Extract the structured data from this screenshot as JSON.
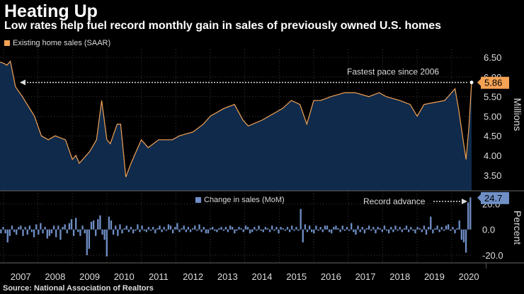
{
  "header": {
    "title": "Heating Up",
    "subtitle": "Low rates help fuel record monthly gain in sales of previously owned U.S. homes"
  },
  "source": "Source: National Association of Realtors",
  "colors": {
    "line": "#f4a254",
    "area": "#0f2a4a",
    "bar": "#6f8fc6",
    "badge1": "#f4a254",
    "badge2": "#6f8fc6"
  },
  "chart_data": [
    {
      "type": "area",
      "name": "top",
      "legend": "Existing home sales (SAAR)",
      "ylabel": "Millions",
      "ylim": [
        3.1,
        6.7
      ],
      "yticks": [
        "3.50",
        "4.00",
        "4.50",
        "5.00",
        "5.50",
        "6.00",
        "6.50"
      ],
      "years": [
        "2007",
        "2008",
        "2009",
        "2010",
        "2011",
        "2012",
        "2013",
        "2014",
        "2015",
        "2016",
        "2017",
        "2018",
        "2019",
        "2020"
      ],
      "xstart": 2006.9,
      "xend": 2020.58,
      "anchors": [
        [
          2006.9,
          6.38
        ],
        [
          2007.0,
          6.35
        ],
        [
          2007.1,
          6.3
        ],
        [
          2007.2,
          6.4
        ],
        [
          2007.35,
          5.75
        ],
        [
          2007.55,
          5.5
        ],
        [
          2007.9,
          5.0
        ],
        [
          2008.1,
          4.5
        ],
        [
          2008.3,
          4.4
        ],
        [
          2008.5,
          4.5
        ],
        [
          2008.8,
          4.4
        ],
        [
          2009.0,
          3.9
        ],
        [
          2009.1,
          4.0
        ],
        [
          2009.2,
          3.8
        ],
        [
          2009.5,
          4.1
        ],
        [
          2009.7,
          4.4
        ],
        [
          2009.85,
          5.4
        ],
        [
          2010.0,
          4.4
        ],
        [
          2010.1,
          4.3
        ],
        [
          2010.3,
          4.8
        ],
        [
          2010.4,
          4.8
        ],
        [
          2010.55,
          3.45
        ],
        [
          2010.7,
          3.8
        ],
        [
          2010.9,
          4.2
        ],
        [
          2011.0,
          4.4
        ],
        [
          2011.2,
          4.2
        ],
        [
          2011.5,
          4.4
        ],
        [
          2011.9,
          4.4
        ],
        [
          2012.1,
          4.5
        ],
        [
          2012.5,
          4.6
        ],
        [
          2012.8,
          4.8
        ],
        [
          2013.0,
          5.0
        ],
        [
          2013.4,
          5.2
        ],
        [
          2013.7,
          5.3
        ],
        [
          2013.95,
          4.9
        ],
        [
          2014.1,
          4.75
        ],
        [
          2014.5,
          4.9
        ],
        [
          2014.9,
          5.1
        ],
        [
          2015.1,
          5.2
        ],
        [
          2015.35,
          5.4
        ],
        [
          2015.6,
          5.3
        ],
        [
          2015.8,
          4.8
        ],
        [
          2016.0,
          5.4
        ],
        [
          2016.2,
          5.4
        ],
        [
          2016.5,
          5.5
        ],
        [
          2016.9,
          5.6
        ],
        [
          2017.2,
          5.6
        ],
        [
          2017.6,
          5.5
        ],
        [
          2017.9,
          5.6
        ],
        [
          2018.1,
          5.5
        ],
        [
          2018.5,
          5.4
        ],
        [
          2018.8,
          5.3
        ],
        [
          2019.0,
          5.0
        ],
        [
          2019.2,
          5.3
        ],
        [
          2019.5,
          5.35
        ],
        [
          2019.8,
          5.4
        ],
        [
          2019.95,
          5.55
        ],
        [
          2020.1,
          5.7
        ],
        [
          2020.2,
          5.2
        ],
        [
          2020.35,
          4.3
        ],
        [
          2020.42,
          3.9
        ],
        [
          2020.5,
          4.7
        ],
        [
          2020.58,
          5.86
        ]
      ],
      "annotation": "Fastest pace since 2006",
      "last_value": "5.86"
    },
    {
      "type": "bar",
      "name": "bottom",
      "legend": "Change in sales (MoM)",
      "ylabel": "Percent",
      "ylim": [
        -26,
        29
      ],
      "yticks": [
        "-20.0",
        "0.0",
        "20.0"
      ],
      "xstart": 2006.9,
      "xend": 2020.58,
      "values": [
        -3,
        2,
        -3,
        -10,
        -5,
        3,
        -2,
        -4,
        2,
        3,
        -5,
        2,
        -4,
        3,
        -2,
        -6,
        4,
        -4,
        5,
        -3,
        2,
        -7,
        -5,
        -3,
        3,
        -6,
        3,
        -8,
        2,
        4,
        -3,
        5,
        8,
        -5,
        9,
        -2,
        -5,
        3,
        -3,
        -20,
        -15,
        6,
        7,
        -5,
        8,
        11,
        -4,
        -8,
        -21,
        10,
        7,
        -4,
        3,
        -5,
        4,
        -3,
        1,
        3,
        -2,
        2,
        -3,
        -1,
        4,
        -2,
        3,
        -1,
        -2,
        2,
        -1,
        2,
        -3,
        1,
        3,
        -2,
        2,
        -1,
        4,
        3,
        -3,
        2,
        5,
        -2,
        1,
        3,
        -2,
        2,
        -2,
        1,
        3,
        -1,
        4,
        -2,
        2,
        -3,
        -3,
        1,
        2,
        -1,
        -2,
        1,
        2,
        -1,
        2,
        -2,
        3,
        2,
        -3,
        -1,
        2,
        1,
        -2,
        3,
        2,
        -3,
        -2,
        2,
        -1,
        3,
        -1,
        -2,
        2,
        1,
        -2,
        3,
        -1,
        2,
        -3,
        2,
        1,
        -1,
        2,
        -2,
        3,
        -1,
        2,
        -1,
        16,
        -10,
        4,
        -2,
        3,
        -2,
        -3,
        3,
        -1,
        2,
        -2,
        3,
        3,
        -2,
        -3,
        2,
        3,
        1,
        -2,
        3,
        -1,
        2,
        -1,
        5,
        -2,
        -4,
        3,
        -2,
        2,
        -3,
        1,
        3,
        -1,
        2,
        -3,
        2,
        1,
        -2,
        3,
        -1,
        -3,
        2,
        -2,
        3,
        -1,
        2,
        -2,
        1,
        3,
        -2,
        2,
        -1,
        -3,
        2,
        1,
        -2,
        3,
        -4,
        2,
        10,
        -3,
        1,
        3,
        -2,
        2,
        -1,
        3,
        4,
        -1,
        2,
        -3,
        1,
        7,
        -8,
        -10,
        -18,
        21,
        25
      ],
      "annotation": "Record advance",
      "last_value": "24.7"
    }
  ]
}
